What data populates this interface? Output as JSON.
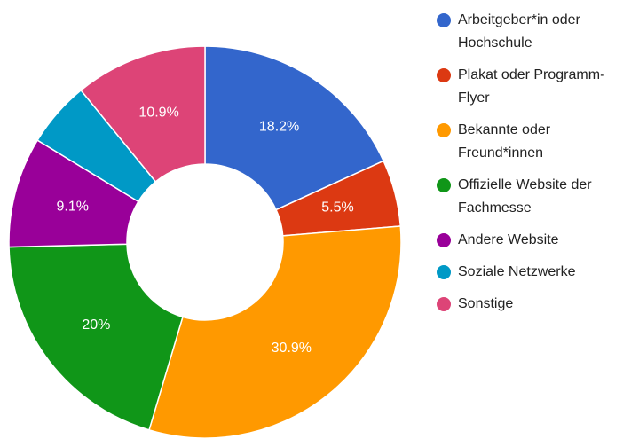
{
  "chart_data": {
    "type": "donut",
    "categories": [
      "Arbeitgeber*in oder Hochschule",
      "Plakat oder Programm-Flyer",
      "Bekannte oder Freund*innen",
      "Offizielle Website der Fachmesse",
      "Andere Website",
      "Soziale Netzwerke",
      "Sonstige"
    ],
    "values": [
      18.2,
      5.5,
      30.9,
      20,
      9.1,
      5.4,
      10.9
    ],
    "value_labels": [
      "18.2%",
      "5.5%",
      "30.9%",
      "20%",
      "9.1%",
      null,
      "10.9%"
    ],
    "colors": [
      "#3366cc",
      "#dc3912",
      "#ff9900",
      "#109618",
      "#990099",
      "#0099c6",
      "#dd4477"
    ],
    "legend": "right"
  }
}
